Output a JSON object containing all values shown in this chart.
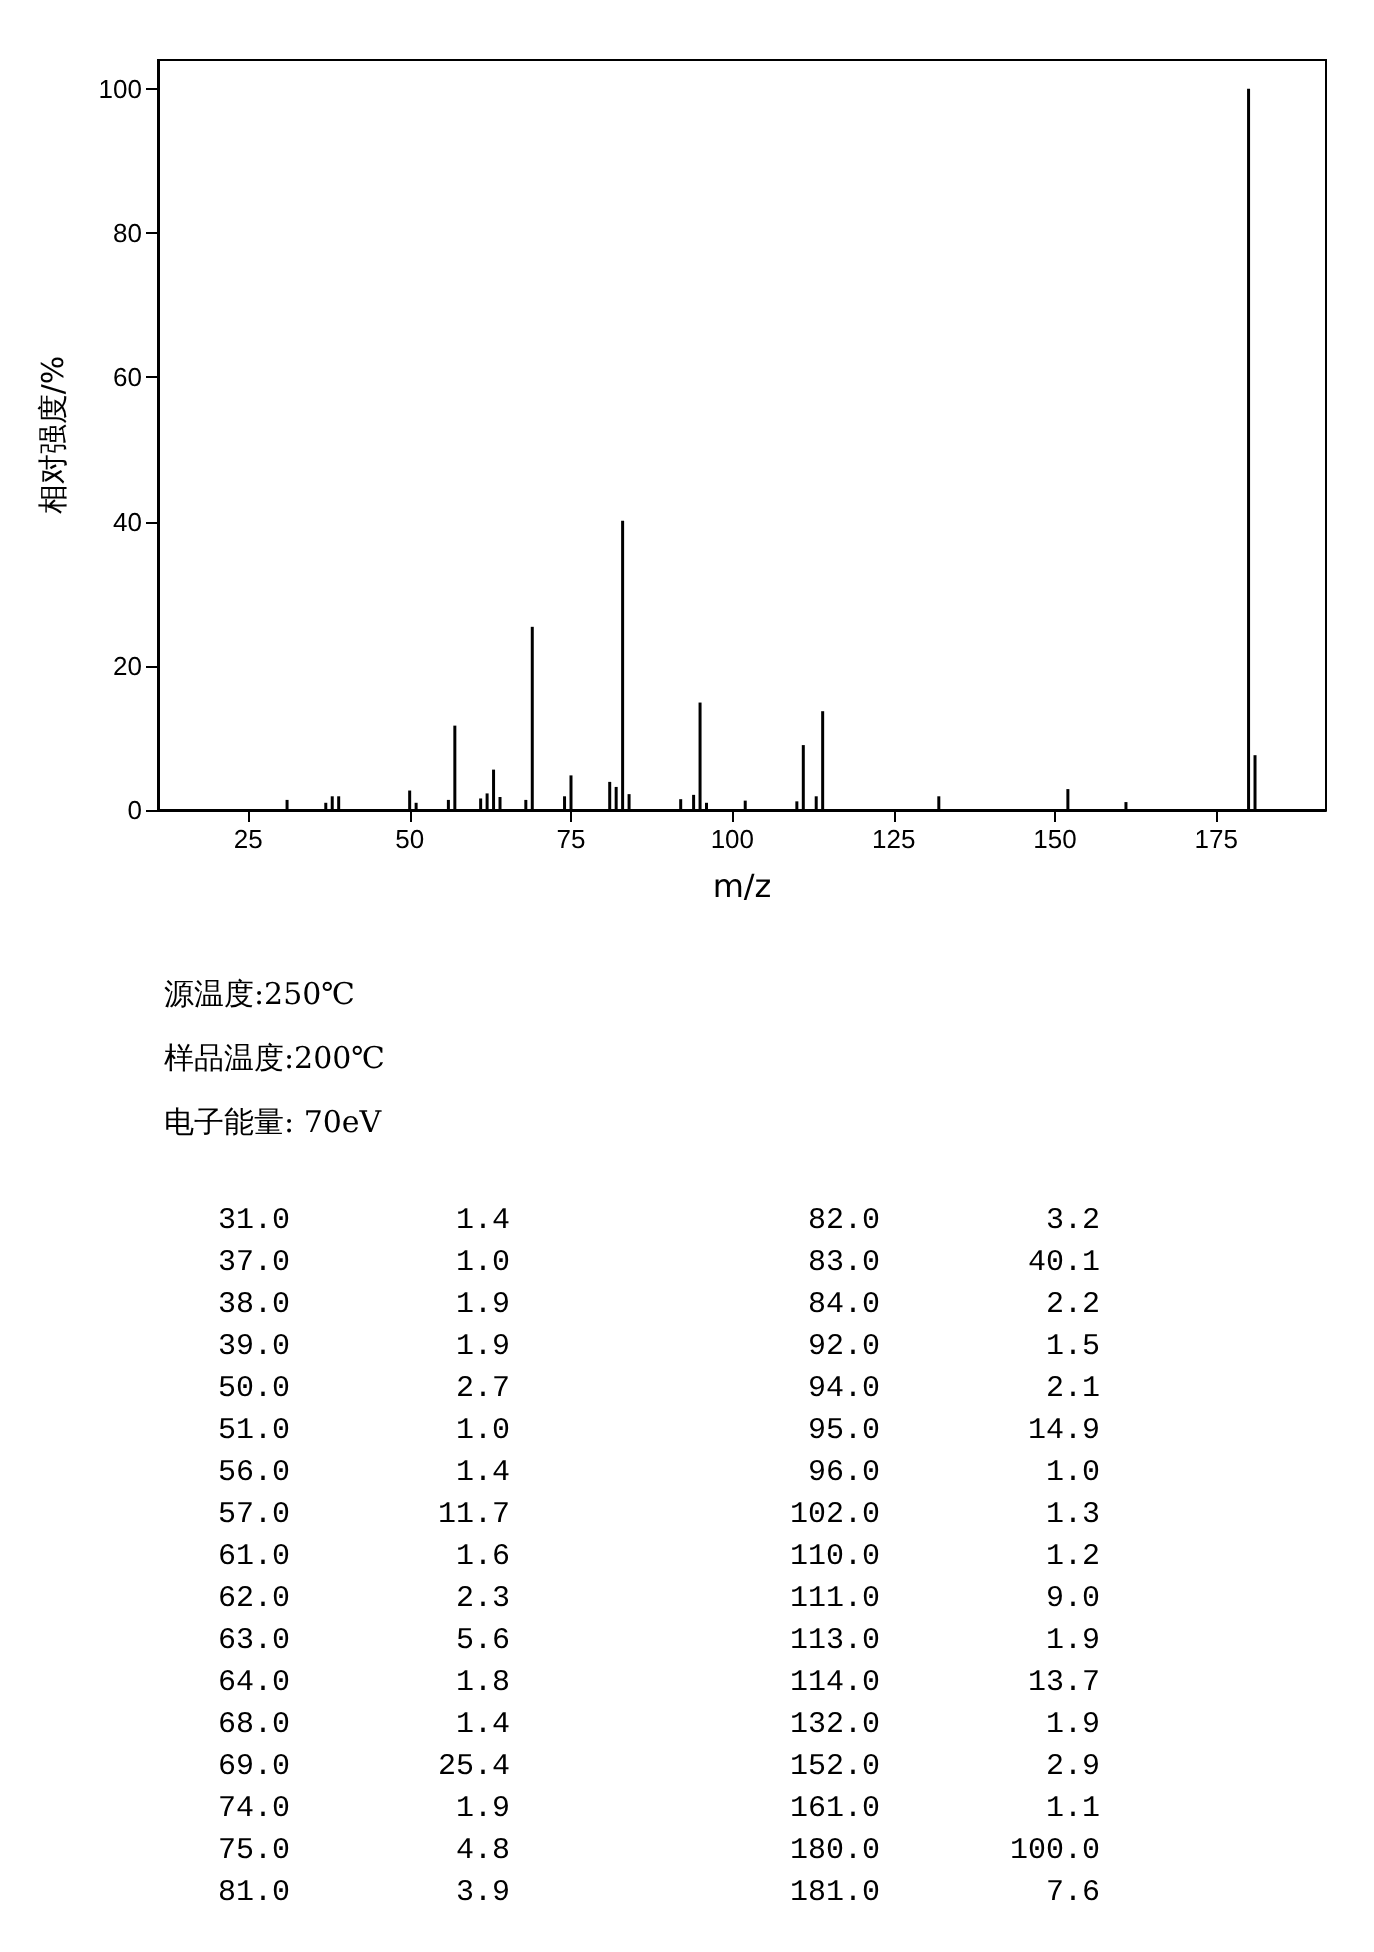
{
  "chart_data": [
    {
      "type": "bar",
      "xlabel": "m/z",
      "ylabel": "相对强度/%",
      "x": [
        31,
        37,
        38,
        39,
        50,
        51,
        56,
        57,
        61,
        62,
        63,
        64,
        68,
        69,
        74,
        75,
        81,
        82,
        83,
        84,
        92,
        94,
        95,
        96,
        102,
        110,
        111,
        113,
        114,
        132,
        152,
        161,
        180,
        181
      ],
      "values": [
        1.4,
        1.0,
        1.9,
        1.9,
        2.7,
        1.0,
        1.4,
        11.7,
        1.6,
        2.3,
        5.6,
        1.8,
        1.4,
        25.4,
        1.9,
        4.8,
        3.9,
        3.2,
        40.1,
        2.2,
        1.5,
        2.1,
        14.9,
        1.0,
        1.3,
        1.2,
        9.0,
        1.9,
        13.7,
        1.9,
        2.9,
        1.1,
        100.0,
        7.6
      ],
      "color": "#000000",
      "xlim": [
        11,
        192
      ],
      "xticks": [
        25,
        50,
        75,
        100,
        125,
        150,
        175
      ],
      "ylim": [
        0,
        104
      ],
      "yticks": [
        0,
        20,
        40,
        60,
        80,
        100
      ],
      "annotations": [
        "源温度:250℃",
        "样品温度:200℃",
        "电子能量: 70eV"
      ]
    },
    {
      "type": "other",
      "categories": [
        "31.0",
        "37.0",
        "38.0",
        "39.0",
        "50.0",
        "51.0",
        "56.0",
        "57.0",
        "61.0",
        "62.0",
        "63.0",
        "64.0",
        "68.0",
        "69.0",
        "74.0",
        "75.0",
        "81.0",
        "82.0",
        "83.0",
        "84.0",
        "92.0",
        "94.0",
        "95.0",
        "96.0",
        "102.0",
        "110.0",
        "111.0",
        "113.0",
        "114.0",
        "132.0",
        "152.0",
        "161.0",
        "180.0",
        "181.0"
      ],
      "value_labels": [
        "1.4",
        "1.0",
        "1.9",
        "1.9",
        "2.7",
        "1.0",
        "1.4",
        "11.7",
        "1.6",
        "2.3",
        "5.6",
        "1.8",
        "1.4",
        "25.4",
        "1.9",
        "4.8",
        "3.9",
        "3.2",
        "40.1",
        "2.2",
        "1.5",
        "2.1",
        "14.9",
        "1.0",
        "1.3",
        "1.2",
        "9.0",
        "1.9",
        "13.7",
        "1.9",
        "2.9",
        "1.1",
        "100.0",
        "7.6"
      ],
      "values": [
        1.4,
        1.0,
        1.9,
        1.9,
        2.7,
        1.0,
        1.4,
        11.7,
        1.6,
        2.3,
        5.6,
        1.8,
        1.4,
        25.4,
        1.9,
        4.8,
        3.9,
        3.2,
        40.1,
        2.2,
        1.5,
        2.1,
        14.9,
        1.0,
        1.3,
        1.2,
        9.0,
        1.9,
        13.7,
        1.9,
        2.9,
        1.1,
        100.0,
        7.6
      ]
    }
  ]
}
